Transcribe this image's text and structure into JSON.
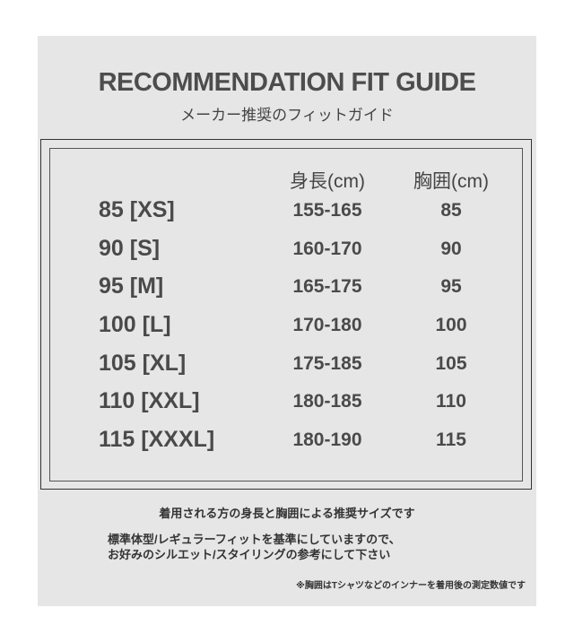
{
  "title": "RECOMMENDATION FIT GUIDE",
  "subtitle": "メーカー推奨のフィットガイド",
  "table": {
    "headers": [
      "身長(cm)",
      "胸囲(cm)"
    ],
    "rows": [
      {
        "size": "85 [XS]",
        "height": "155-165",
        "chest": "85"
      },
      {
        "size": "90 [S]",
        "height": "160-170",
        "chest": "90"
      },
      {
        "size": "95 [M]",
        "height": "165-175",
        "chest": "95"
      },
      {
        "size": "100 [L]",
        "height": "170-180",
        "chest": "100"
      },
      {
        "size": "105 [XL]",
        "height": "175-185",
        "chest": "105"
      },
      {
        "size": "110 [XXL]",
        "height": "180-185",
        "chest": "110"
      },
      {
        "size": "115 [XXXL]",
        "height": "180-190",
        "chest": "115"
      }
    ]
  },
  "notes": {
    "line1": "着用される方の身長と胸囲による推奨サイズです",
    "line2a": "標準体型/レギュラーフィットを基準にしていますので、",
    "line2b": "お好みのシルエット/スタイリングの参考にして下さい",
    "footnote": "※胸囲はTシャツなどのインナーを着用後の測定数値です"
  }
}
